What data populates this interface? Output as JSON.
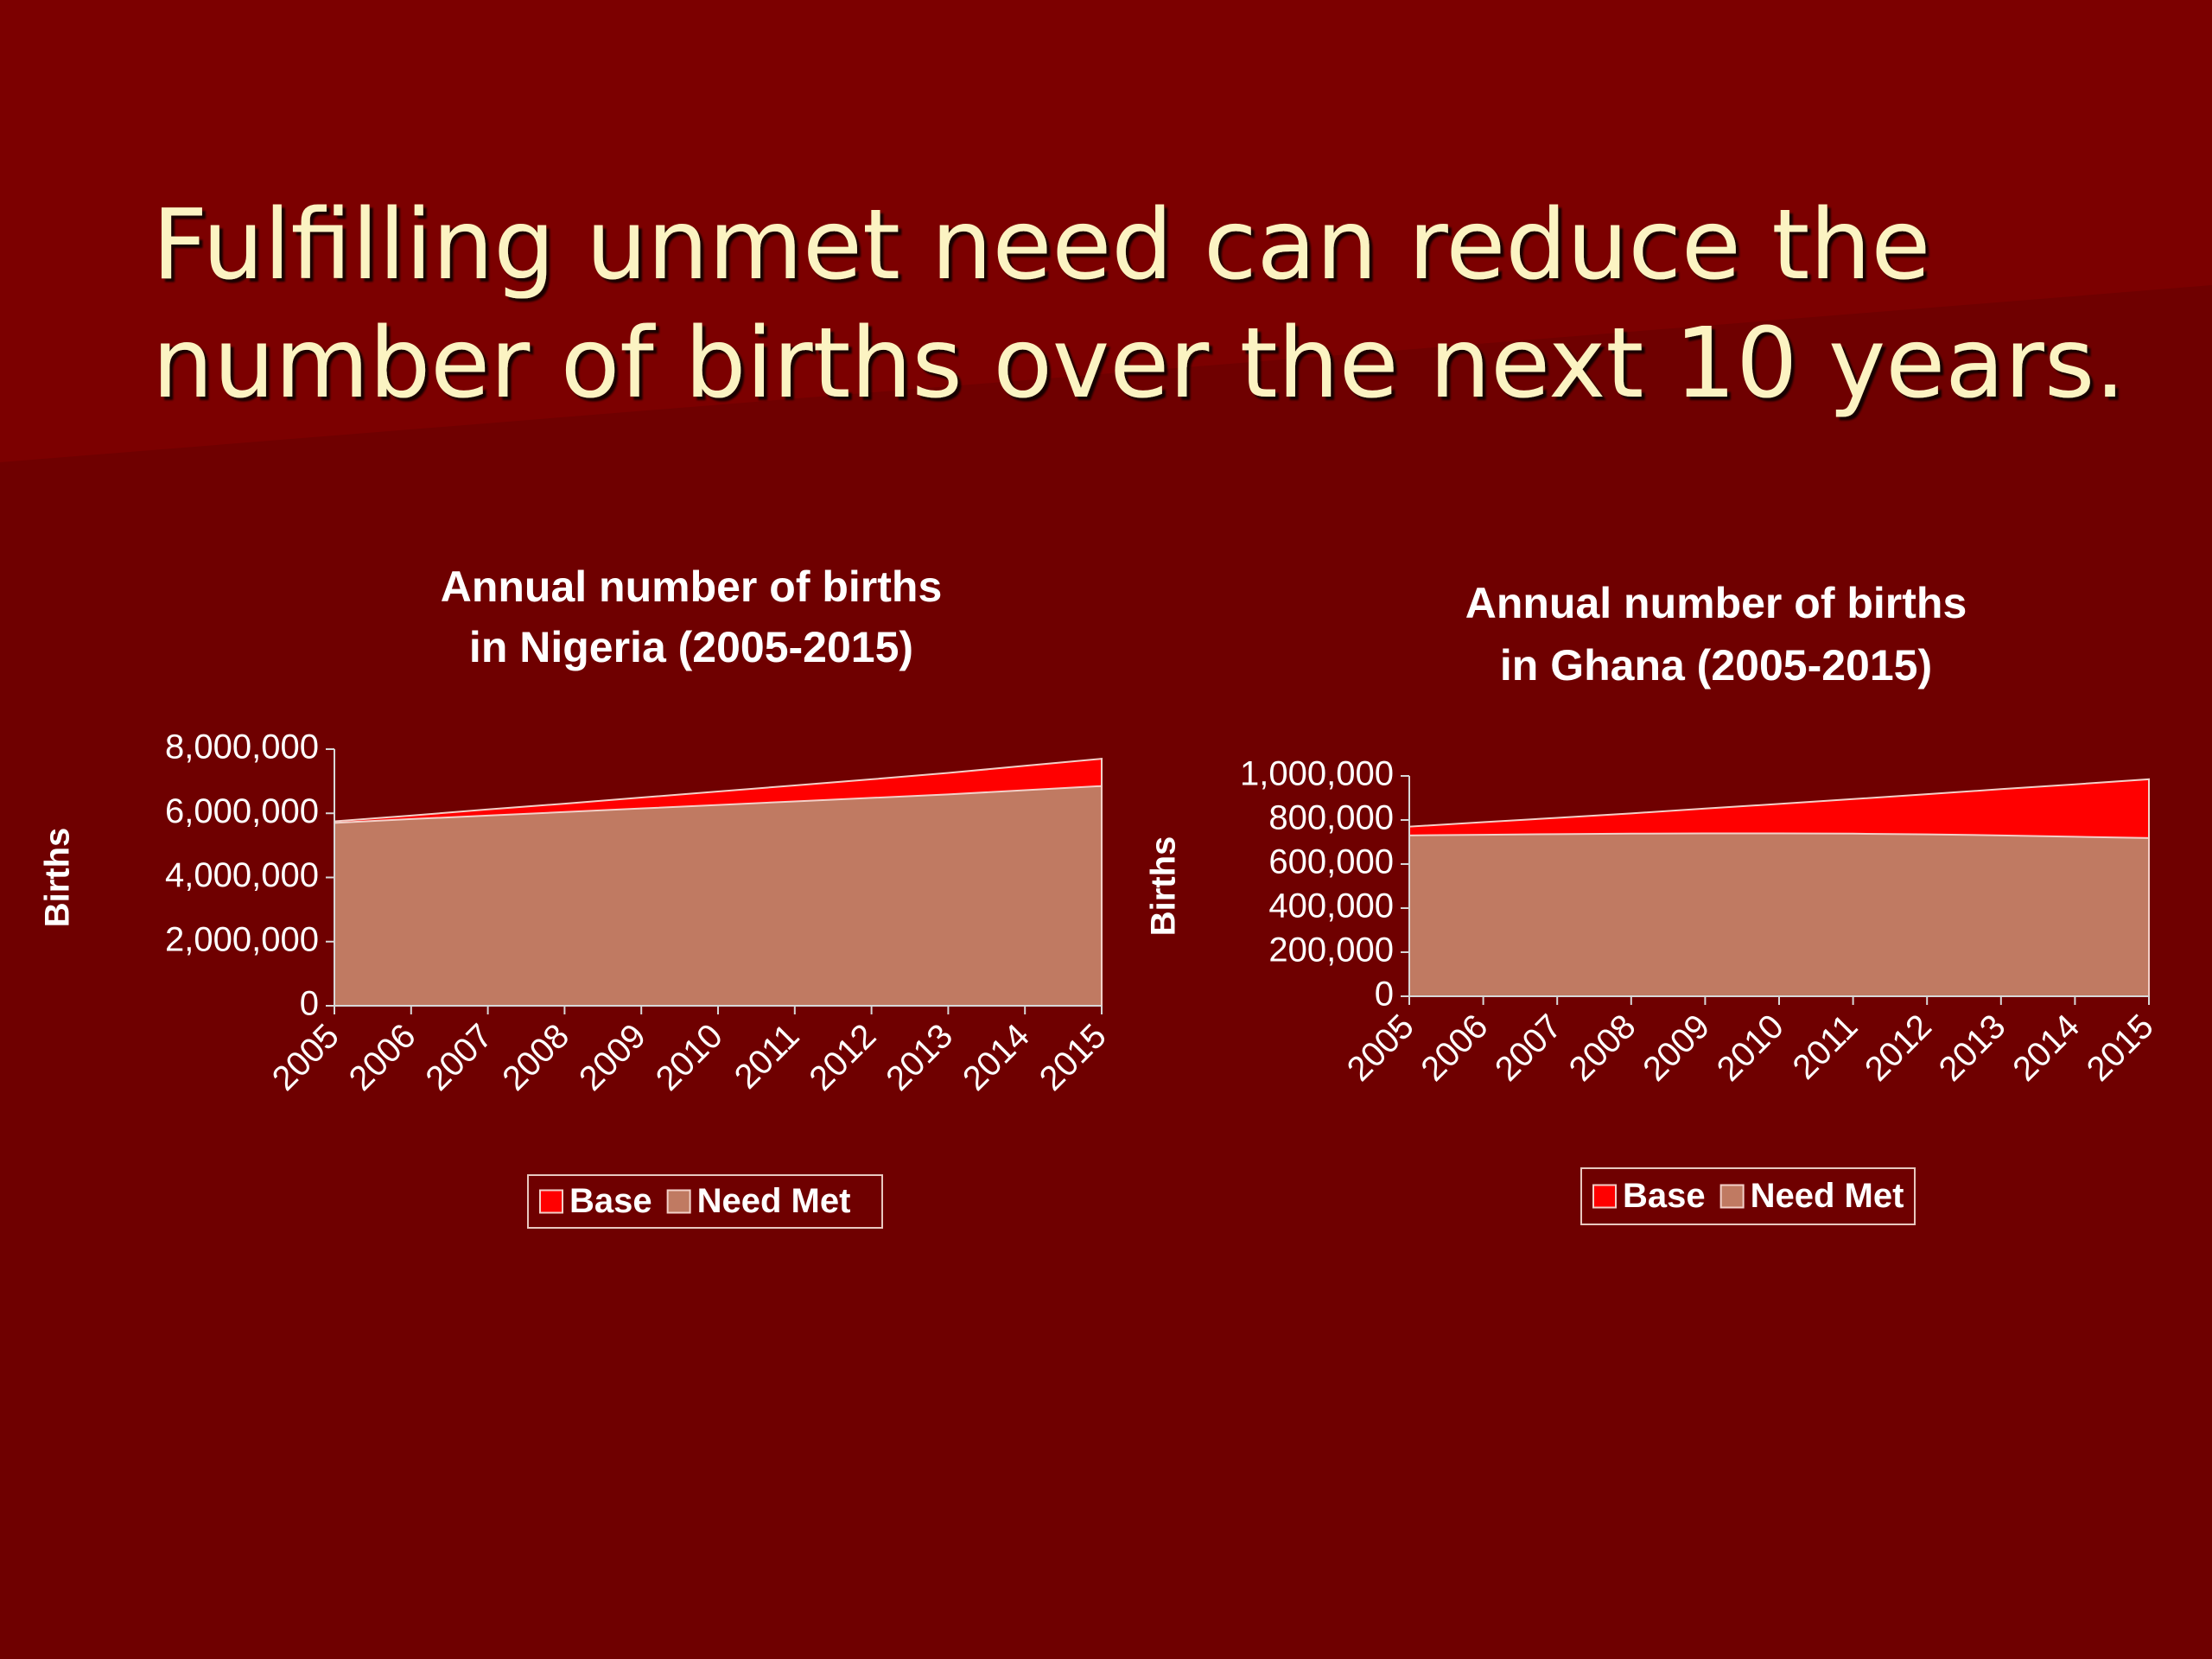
{
  "title": "Fulfilling unmet need can reduce the number of births over the next 10 years.",
  "chart_data": [
    {
      "type": "area",
      "title": "Annual number of births in Nigeria (2005-2015)",
      "y_label": "Births",
      "categories": [
        "2005",
        "2006",
        "2007",
        "2008",
        "2009",
        "2010",
        "2011",
        "2012",
        "2013",
        "2014",
        "2015"
      ],
      "series": [
        {
          "name": "Base",
          "color": "#ff0000",
          "values": [
            5750000,
            5930000,
            6120000,
            6300000,
            6490000,
            6680000,
            6870000,
            7060000,
            7260000,
            7480000,
            7700000
          ]
        },
        {
          "name": "Need Met",
          "color": "#c07a62",
          "values": [
            5700000,
            5820000,
            5930000,
            6040000,
            6150000,
            6260000,
            6370000,
            6480000,
            6590000,
            6720000,
            6850000
          ]
        }
      ],
      "ylim": [
        0,
        8000000
      ],
      "yticks": [
        0,
        {
          "value": 2000000,
          "label": "2,000,000"
        },
        {
          "value": 4000000,
          "label": "4,000,000"
        },
        {
          "value": 6000000,
          "label": "6,000,000"
        },
        {
          "value": 8000000,
          "label": "8,000,000"
        }
      ],
      "legend": "bottom"
    },
    {
      "type": "area",
      "title": "Annual number of births in Ghana (2005-2015)",
      "y_label": "Births",
      "categories": [
        "2005",
        "2006",
        "2007",
        "2008",
        "2009",
        "2010",
        "2011",
        "2012",
        "2013",
        "2014",
        "2015"
      ],
      "series": [
        {
          "name": "Base",
          "color": "#ff0000",
          "values": [
            770000,
            790000,
            810000,
            830000,
            852000,
            873000,
            895000,
            917000,
            940000,
            962000,
            985000
          ]
        },
        {
          "name": "Need Met",
          "color": "#c07a62",
          "values": [
            730000,
            733000,
            736000,
            738000,
            739000,
            739000,
            738000,
            735000,
            730000,
            724000,
            718000
          ]
        }
      ],
      "ylim": [
        0,
        1000000
      ],
      "yticks": [
        0,
        {
          "value": 200000,
          "label": "200,000"
        },
        {
          "value": 400000,
          "label": "400,000"
        },
        {
          "value": 600000,
          "label": "600,000"
        },
        {
          "value": 800000,
          "label": "800,000"
        },
        {
          "value": 1000000,
          "label": "1,000,000"
        }
      ],
      "legend": "bottom"
    }
  ]
}
